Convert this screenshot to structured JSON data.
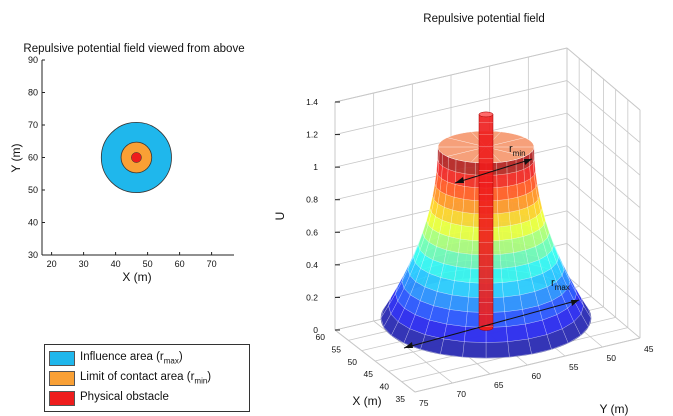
{
  "chart_data": [
    {
      "type": "scatter",
      "title": "Repulsive potential field viewed from above",
      "xlabel": "X (m)",
      "ylabel": "Y (m)",
      "xlim": [
        17,
        77
      ],
      "ylim": [
        30,
        90
      ],
      "xticks": [
        20,
        30,
        40,
        50,
        60,
        70
      ],
      "yticks": [
        30,
        40,
        50,
        60,
        70,
        80,
        90
      ],
      "center": [
        46.5,
        60
      ],
      "radii": {
        "influence": 10,
        "contact": 4.5,
        "obstacle": 1.2
      },
      "grid": false
    },
    {
      "type": "surface",
      "title": "Repulsive potential field",
      "xlabel": "X (m)",
      "ylabel": "Y (m)",
      "zlabel": "U",
      "zticks": [
        0,
        0.2,
        0.4,
        0.6,
        0.8,
        1,
        1.2,
        1.4
      ],
      "xticks": [
        35,
        40,
        45,
        50,
        55,
        60
      ],
      "yticks": [
        45,
        50,
        55,
        60,
        65,
        70,
        75
      ],
      "zlim": [
        0,
        1.4
      ],
      "grid": true,
      "annotations": {
        "rmin": "r",
        "rmin_sub": "min",
        "rmax": "r",
        "rmax_sub": "max"
      }
    }
  ],
  "legend": [
    {
      "label": "Influence area (r",
      "sub": "max",
      "close": ")",
      "color": "#1fb7ec"
    },
    {
      "label": "Limit of contact area (r",
      "sub": "min",
      "close": ")",
      "color": "#f9a035"
    },
    {
      "label": "Physical obstacle",
      "sub": "",
      "close": "",
      "color": "#ee1c1c"
    }
  ],
  "colors": {
    "influence": "#1fb7ec",
    "contact": "#f9a035",
    "obstacle": "#ee1c1c",
    "base_disc": "#7b7fd4",
    "grid": "#c8c8c8"
  }
}
